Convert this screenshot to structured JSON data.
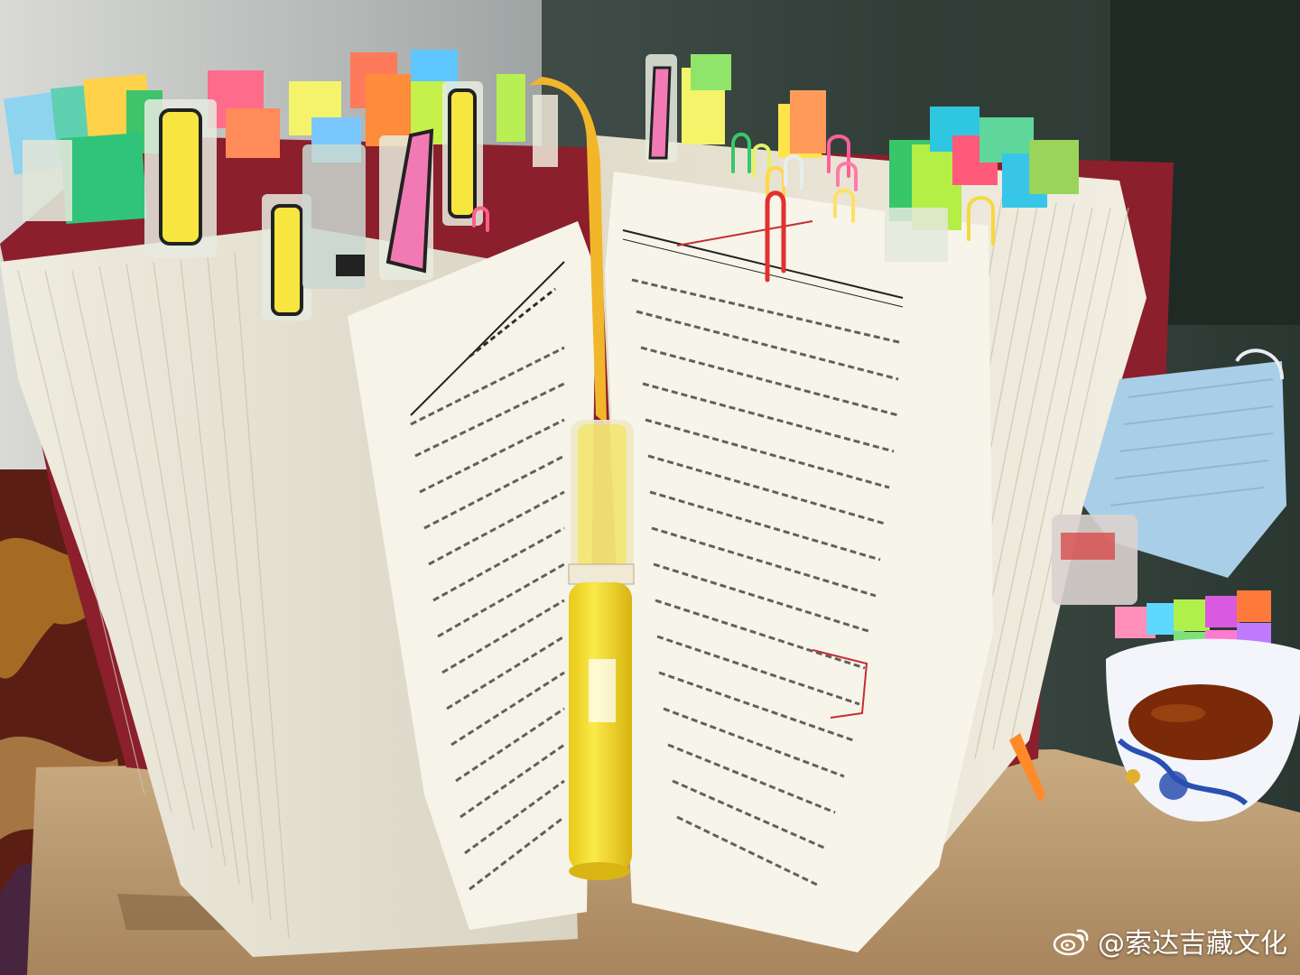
{
  "watermark": {
    "text": "@索达吉藏文化",
    "icon": "weibo-logo-icon"
  },
  "colors": {
    "pages": "#f4f1e6",
    "cover": "#8c1f2c",
    "bookmark_ribbon": "#f2b62a",
    "highlighter": "#f6e23a",
    "mask": "#a9cfe8",
    "tea": "#7a2a08"
  },
  "scene_objects": [
    "open-book-icon",
    "sticky-tab-flags-icon",
    "paper-clips-icon",
    "yellow-highlighter-icon",
    "bookmark-ribbon-icon",
    "face-mask-icon",
    "tea-cup-icon",
    "sticky-note-pack-icon",
    "orange-pen-icon",
    "cardboard-box-icon"
  ]
}
